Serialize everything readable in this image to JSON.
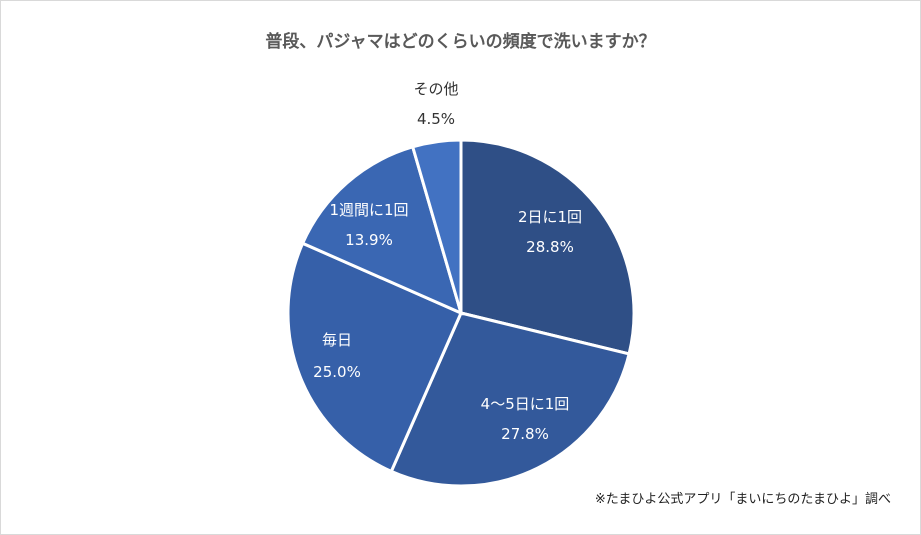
{
  "chart_data": {
    "type": "pie",
    "title": "普段、パジャマはどのくらいの頻度で洗いますか？",
    "slices": [
      {
        "label": "2日に1回",
        "value": 28.8,
        "value_label": "28.8%",
        "color": "#2f4f86"
      },
      {
        "label": "4～5日に1回",
        "value": 27.8,
        "value_label": "27.8%",
        "color": "#33599b"
      },
      {
        "label": "毎日",
        "value": 25.0,
        "value_label": "25.0%",
        "color": "#3660a9"
      },
      {
        "label": "1週間に1回",
        "value": 13.9,
        "value_label": "13.9%",
        "color": "#3a67b3"
      },
      {
        "label": "その他",
        "value": 4.5,
        "value_label": "4.5%",
        "color": "#4272c2"
      }
    ],
    "start": "top",
    "direction": "clockwise",
    "legend": "none",
    "source_note": "※たまひよ公式アプリ「まいにちのたまひよ」調べ"
  }
}
